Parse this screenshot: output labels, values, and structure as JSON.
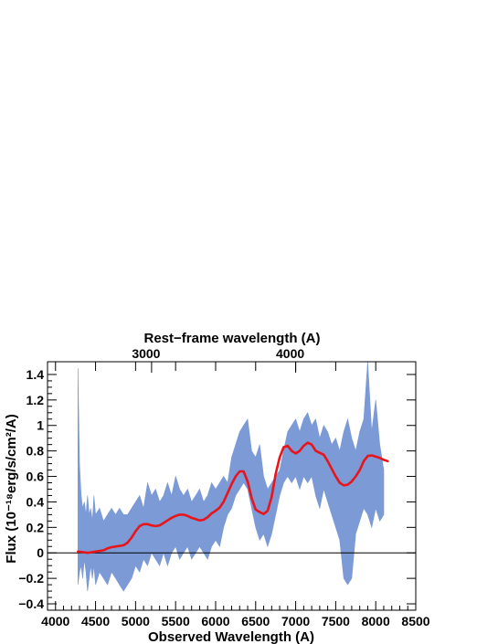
{
  "chart_data": {
    "type": "line",
    "title": "",
    "top_axis_label": "Rest−frame wavelength (A)",
    "xlabel": "Observed Wavelength (A)",
    "ylabel": "Flux (10⁻¹⁸erg/s/cm²/A)",
    "xlim": [
      3900,
      8500
    ],
    "ylim": [
      -0.45,
      1.5
    ],
    "xticks": [
      4000,
      4500,
      5000,
      5500,
      6000,
      6500,
      7000,
      7500,
      8000,
      8500
    ],
    "xtick_labels": [
      "4000",
      "4500",
      "5000",
      "5500",
      "6000",
      "6500",
      "7000",
      "7500",
      "8000",
      "8500"
    ],
    "yticks": [
      -0.4,
      -0.2,
      0,
      0.2,
      0.4,
      0.6,
      0.8,
      1,
      1.2,
      1.4
    ],
    "ytick_labels": [
      "−0.4",
      "−0.2",
      "0",
      "0.2",
      "0.4",
      "0.6",
      "0.8",
      "1",
      "1.2",
      "1.4"
    ],
    "top_ticks": [
      3000,
      4000
    ],
    "top_tick_labels": [
      "3000",
      "4000"
    ],
    "top_ticks_observed": [
      5200,
      7000
    ],
    "zero_line": 0,
    "series": [
      {
        "color": "#7b9ad6",
        "style": "filled band",
        "x": [
          4280,
          4300,
          4320,
          4340,
          4360,
          4380,
          4400,
          4420,
          4440,
          4460,
          4480,
          4500,
          4550,
          4600,
          4650,
          4700,
          4750,
          4800,
          4850,
          4900,
          4950,
          5000,
          5050,
          5100,
          5150,
          5200,
          5250,
          5300,
          5350,
          5400,
          5450,
          5500,
          5550,
          5600,
          5650,
          5700,
          5750,
          5800,
          5850,
          5900,
          5950,
          6000,
          6050,
          6100,
          6150,
          6200,
          6250,
          6300,
          6350,
          6400,
          6450,
          6500,
          6550,
          6600,
          6650,
          6700,
          6750,
          6800,
          6850,
          6900,
          6950,
          7000,
          7050,
          7100,
          7150,
          7200,
          7250,
          7300,
          7350,
          7400,
          7450,
          7500,
          7550,
          7600,
          7650,
          7700,
          7750,
          7800,
          7850,
          7900,
          7950,
          8000,
          8050,
          8100
        ],
        "upper": [
          1.45,
          0.7,
          0.45,
          0.35,
          0.4,
          0.3,
          0.45,
          0.3,
          0.35,
          0.25,
          0.45,
          0.3,
          0.35,
          0.25,
          0.3,
          0.35,
          0.3,
          0.35,
          0.3,
          0.3,
          0.35,
          0.4,
          0.45,
          0.35,
          0.55,
          0.45,
          0.5,
          0.4,
          0.45,
          0.55,
          0.45,
          0.6,
          0.5,
          0.45,
          0.5,
          0.4,
          0.45,
          0.5,
          0.4,
          0.45,
          0.55,
          0.5,
          0.55,
          0.6,
          0.55,
          0.75,
          0.85,
          0.95,
          1.0,
          1.05,
          0.8,
          0.75,
          0.85,
          0.6,
          0.5,
          0.55,
          0.6,
          0.65,
          0.8,
          0.95,
          1.0,
          1.05,
          0.95,
          1.05,
          1.1,
          1.0,
          1.05,
          0.9,
          1.0,
          0.95,
          0.85,
          0.9,
          0.8,
          0.95,
          1.05,
          0.9,
          0.8,
          0.95,
          1.05,
          1.5,
          0.95,
          1.2,
          0.85,
          0.65
        ],
        "lower": [
          -0.25,
          -0.15,
          -0.1,
          -0.2,
          -0.05,
          -0.15,
          -0.3,
          -0.2,
          -0.1,
          -0.2,
          -0.1,
          -0.25,
          -0.15,
          -0.2,
          -0.25,
          -0.15,
          -0.2,
          -0.25,
          -0.3,
          -0.25,
          -0.2,
          -0.1,
          -0.15,
          -0.05,
          -0.1,
          0.0,
          -0.05,
          -0.1,
          0.0,
          -0.1,
          0.0,
          0.05,
          -0.05,
          0.0,
          0.05,
          -0.05,
          0.0,
          0.05,
          0.0,
          -0.05,
          0.05,
          0.1,
          0.05,
          0.2,
          0.3,
          0.35,
          0.45,
          0.5,
          0.55,
          0.5,
          0.35,
          0.2,
          0.1,
          0.15,
          0.05,
          0.15,
          0.3,
          0.45,
          0.55,
          0.6,
          0.55,
          0.6,
          0.5,
          0.6,
          0.55,
          0.6,
          0.45,
          0.35,
          0.5,
          0.4,
          0.3,
          0.2,
          0.1,
          -0.2,
          -0.25,
          -0.2,
          0.15,
          0.25,
          0.35,
          0.3,
          0.2,
          0.35,
          0.25,
          0.3
        ]
      },
      {
        "color": "#e8151b",
        "style": "smooth line",
        "x": [
          4280,
          4350,
          4400,
          4450,
          4500,
          4550,
          4600,
          4650,
          4700,
          4750,
          4800,
          4850,
          4900,
          4950,
          5000,
          5050,
          5100,
          5150,
          5200,
          5250,
          5300,
          5350,
          5400,
          5450,
          5500,
          5550,
          5600,
          5650,
          5700,
          5750,
          5800,
          5850,
          5900,
          5950,
          6000,
          6050,
          6100,
          6150,
          6200,
          6250,
          6300,
          6350,
          6400,
          6450,
          6500,
          6550,
          6600,
          6650,
          6700,
          6750,
          6800,
          6850,
          6900,
          6950,
          7000,
          7050,
          7100,
          7150,
          7200,
          7250,
          7300,
          7350,
          7400,
          7450,
          7500,
          7550,
          7600,
          7650,
          7700,
          7750,
          7800,
          7850,
          7900,
          7950,
          8000,
          8050,
          8100,
          8150
        ],
        "values": [
          0.01,
          0.005,
          0.0,
          0.005,
          0.01,
          0.015,
          0.02,
          0.035,
          0.045,
          0.05,
          0.055,
          0.06,
          0.08,
          0.12,
          0.17,
          0.21,
          0.225,
          0.225,
          0.215,
          0.21,
          0.215,
          0.235,
          0.255,
          0.275,
          0.29,
          0.3,
          0.3,
          0.29,
          0.275,
          0.265,
          0.255,
          0.26,
          0.28,
          0.31,
          0.33,
          0.355,
          0.4,
          0.47,
          0.54,
          0.6,
          0.64,
          0.64,
          0.56,
          0.43,
          0.34,
          0.32,
          0.305,
          0.33,
          0.44,
          0.62,
          0.75,
          0.83,
          0.84,
          0.8,
          0.78,
          0.8,
          0.84,
          0.865,
          0.85,
          0.8,
          0.785,
          0.77,
          0.72,
          0.66,
          0.6,
          0.55,
          0.53,
          0.535,
          0.56,
          0.6,
          0.65,
          0.72,
          0.76,
          0.765,
          0.755,
          0.745,
          0.73,
          0.72
        ]
      }
    ]
  }
}
